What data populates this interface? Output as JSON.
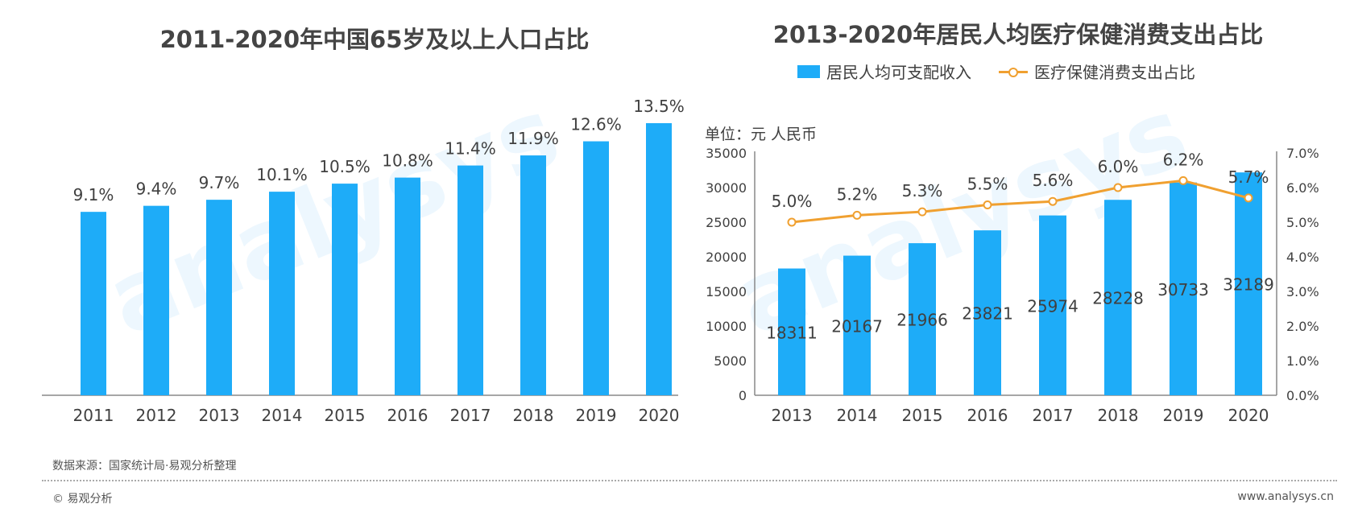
{
  "colors": {
    "bar": "#1eacf8",
    "line": "#f0a030",
    "text": "#404040",
    "axis": "#888888"
  },
  "watermark": "analysys",
  "chart_data": [
    {
      "type": "bar",
      "title": "2011-2020年中国65岁及以上人口占比",
      "categories": [
        "2011",
        "2012",
        "2013",
        "2014",
        "2015",
        "2016",
        "2017",
        "2018",
        "2019",
        "2020"
      ],
      "values": [
        9.1,
        9.4,
        9.7,
        10.1,
        10.5,
        10.8,
        11.4,
        11.9,
        12.6,
        13.5
      ],
      "labels": [
        "9.1%",
        "9.4%",
        "9.7%",
        "10.1%",
        "10.5%",
        "10.8%",
        "11.4%",
        "11.9%",
        "12.6%",
        "13.5%"
      ],
      "ylim": [
        0,
        15
      ],
      "grid": false
    },
    {
      "type": "bar+line",
      "title": "2013-2020年居民人均医疗保健消费支出占比",
      "unit": "单位：元 人民币",
      "legend": [
        "居民人均可支配收入",
        "医疗保健消费支出占比"
      ],
      "legend_position": "top",
      "categories": [
        "2013",
        "2014",
        "2015",
        "2016",
        "2017",
        "2018",
        "2019",
        "2020"
      ],
      "series": [
        {
          "name": "居民人均可支配收入",
          "type": "bar",
          "axis": "left",
          "values": [
            18311,
            20167,
            21966,
            23821,
            25974,
            28228,
            30733,
            32189
          ]
        },
        {
          "name": "医疗保健消费支出占比",
          "type": "line",
          "axis": "right",
          "values": [
            5.0,
            5.2,
            5.3,
            5.5,
            5.6,
            6.0,
            6.2,
            5.7
          ],
          "labels": [
            "5.0%",
            "5.2%",
            "5.3%",
            "5.5%",
            "5.6%",
            "6.0%",
            "6.2%",
            "5.7%"
          ]
        }
      ],
      "y_left": {
        "ticks": [
          "0",
          "5000",
          "10000",
          "15000",
          "20000",
          "25000",
          "30000",
          "35000"
        ],
        "range": [
          0,
          35000
        ]
      },
      "y_right": {
        "ticks": [
          "0.0%",
          "1.0%",
          "2.0%",
          "3.0%",
          "4.0%",
          "5.0%",
          "6.0%",
          "7.0%"
        ],
        "range": [
          0,
          7
        ]
      },
      "grid": false
    }
  ],
  "footer": {
    "source": "数据来源：国家统计局·易观分析整理",
    "copyright": "© 易观分析",
    "site": "www.analysys.cn"
  }
}
